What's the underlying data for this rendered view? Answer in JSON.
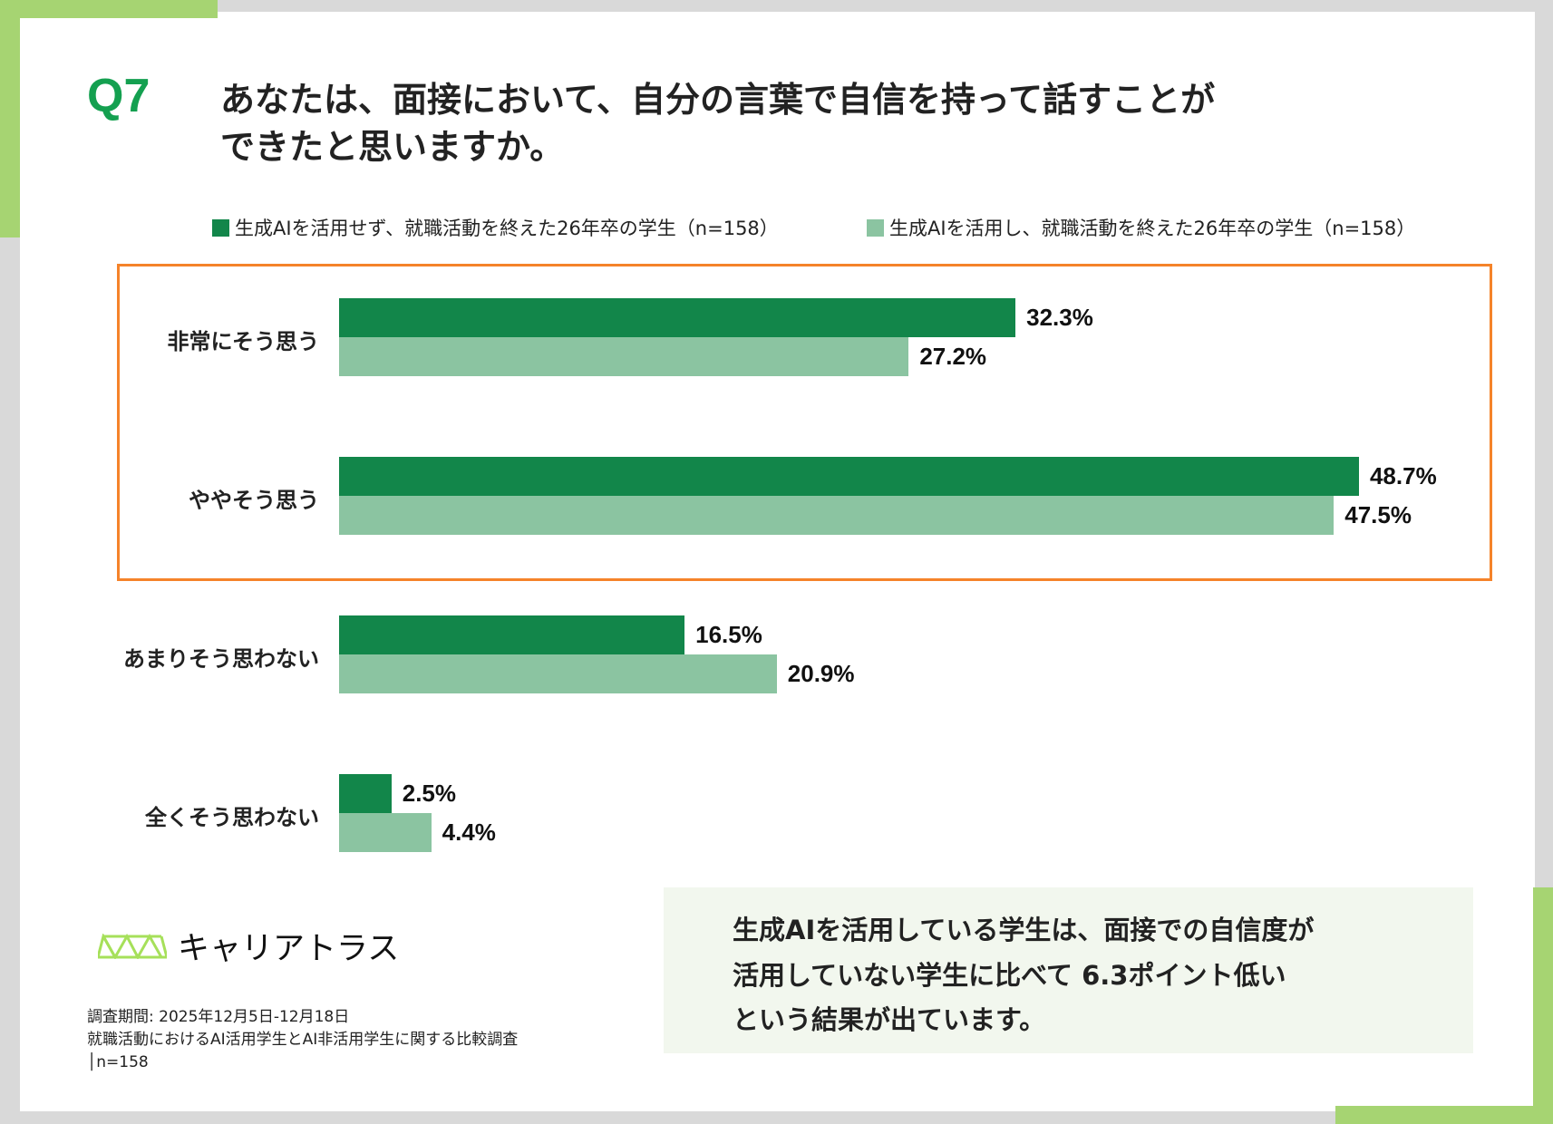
{
  "question_number": "Q7",
  "title_lines": [
    "あなたは、面接において、自分の言葉で自信を持って話すことが",
    "できたと思いますか。"
  ],
  "colors": {
    "series1": "#12864a",
    "series2": "#8bc4a1",
    "highlight": "#f5832a",
    "accent": "#a6d472",
    "q": "#14a050"
  },
  "chart_data": {
    "type": "bar",
    "orientation": "horizontal",
    "title": "あなたは、面接において、自分の言葉で自信を持って話すことができたと思いますか。",
    "categories": [
      "非常にそう思う",
      "ややそう思う",
      "あまりそう思わない",
      "全くそう思わない"
    ],
    "series": [
      {
        "name": "生成AIを活用せず、就職活動を終えた26年卒の学生（n=158）",
        "values": [
          32.3,
          48.7,
          16.5,
          2.5
        ],
        "labels": [
          "32.3%",
          "48.7%",
          "16.5%",
          "2.5%"
        ]
      },
      {
        "name": "生成AIを活用し、就職活動を終えた26年卒の学生（n=158）",
        "values": [
          27.2,
          47.5,
          20.9,
          4.4
        ],
        "labels": [
          "27.2%",
          "47.5%",
          "20.9%",
          "4.4%"
        ]
      }
    ],
    "unit": "%",
    "legend": "top",
    "grid": false,
    "highlighted_categories": [
      "非常にそう思う",
      "ややそう思う"
    ]
  },
  "logo": {
    "name": "キャリアトラス"
  },
  "footnote": [
    "調査期間: 2025年12月5日-12月18日",
    "就職活動におけるAI活用学生とAI非活用学生に関する比較調査",
    "│n=158"
  ],
  "summary_lines": [
    "生成AIを活用している学生は、面接での自信度が",
    "活用していない学生に比べて 6.3ポイント低い",
    "という結果が出ています。"
  ]
}
